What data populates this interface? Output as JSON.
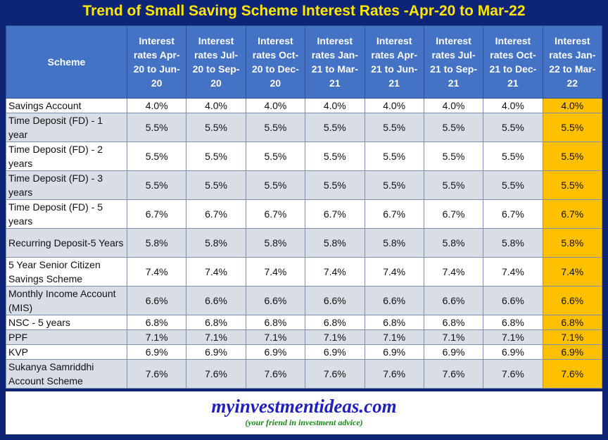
{
  "title": "Trend of Small Saving Scheme Interest Rates -Apr-20 to Mar-22",
  "table": {
    "headers": [
      "Scheme",
      "Interest rates Apr-20 to Jun-20",
      "Interest rates Jul-20 to Sep-20",
      "Interest rates Oct-20 to Dec-20",
      "Interest rates Jan-21 to Mar-21",
      "Interest rates Apr-21 to Jun-21",
      "Interest rates Jul-21 to Sep-21",
      "Interest rates Oct-21 to Dec-21",
      "Interest rates Jan-22 to Mar-22"
    ],
    "rows": [
      [
        "Savings Account",
        "4.0%",
        "4.0%",
        "4.0%",
        "4.0%",
        "4.0%",
        "4.0%",
        "4.0%",
        "4.0%"
      ],
      [
        "Time Deposit (FD) - 1 year",
        "5.5%",
        "5.5%",
        "5.5%",
        "5.5%",
        "5.5%",
        "5.5%",
        "5.5%",
        "5.5%"
      ],
      [
        "Time Deposit (FD) - 2 years",
        "5.5%",
        "5.5%",
        "5.5%",
        "5.5%",
        "5.5%",
        "5.5%",
        "5.5%",
        "5.5%"
      ],
      [
        "Time Deposit (FD) - 3 years",
        "5.5%",
        "5.5%",
        "5.5%",
        "5.5%",
        "5.5%",
        "5.5%",
        "5.5%",
        "5.5%"
      ],
      [
        "Time Deposit (FD) - 5 years",
        "6.7%",
        "6.7%",
        "6.7%",
        "6.7%",
        "6.7%",
        "6.7%",
        "6.7%",
        "6.7%"
      ],
      [
        "Recurring Deposit-5 Years",
        "5.8%",
        "5.8%",
        "5.8%",
        "5.8%",
        "5.8%",
        "5.8%",
        "5.8%",
        "5.8%"
      ],
      [
        "5 Year Senior Citizen Savings Scheme",
        "7.4%",
        "7.4%",
        "7.4%",
        "7.4%",
        "7.4%",
        "7.4%",
        "7.4%",
        "7.4%"
      ],
      [
        "Monthly Income Account (MIS)",
        "6.6%",
        "6.6%",
        "6.6%",
        "6.6%",
        "6.6%",
        "6.6%",
        "6.6%",
        "6.6%"
      ],
      [
        "NSC - 5 years",
        "6.8%",
        "6.8%",
        "6.8%",
        "6.8%",
        "6.8%",
        "6.8%",
        "6.8%",
        "6.8%"
      ],
      [
        "PPF",
        "7.1%",
        "7.1%",
        "7.1%",
        "7.1%",
        "7.1%",
        "7.1%",
        "7.1%",
        "7.1%"
      ],
      [
        "KVP",
        "6.9%",
        "6.9%",
        "6.9%",
        "6.9%",
        "6.9%",
        "6.9%",
        "6.9%",
        "6.9%"
      ],
      [
        "Sukanya Samriddhi Account Scheme",
        "7.6%",
        "7.6%",
        "7.6%",
        "7.6%",
        "7.6%",
        "7.6%",
        "7.6%",
        "7.6%"
      ]
    ]
  },
  "footer": {
    "site": "myinvestmentideas.com",
    "tagline": "(your friend in investment advice)"
  }
}
